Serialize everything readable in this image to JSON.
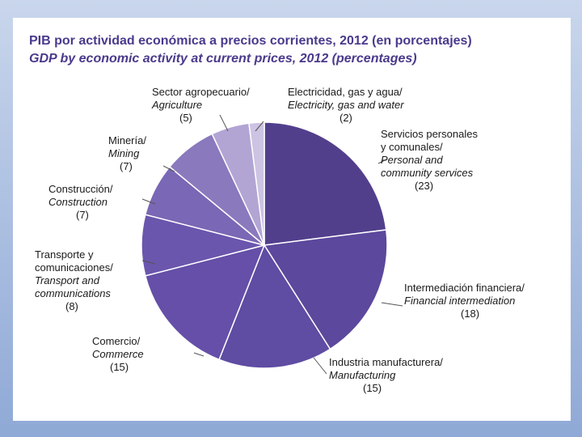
{
  "title": "PIB por actividad económica a precios corrientes, 2012 (en porcentajes)",
  "subtitle": "GDP by economic activity at current prices, 2012 (percentages)",
  "colors": {
    "slices": [
      "#523f8c",
      "#5c489c",
      "#5f4ca3",
      "#654fa8",
      "#6b56ad",
      "#7a67b5",
      "#8a79bd",
      "#b2a5d4",
      "#cdc3e3"
    ],
    "title": "#4a3a8c",
    "leader": "#555555"
  },
  "chart_data": {
    "type": "pie",
    "title": "PIB por actividad económica a precios corrientes, 2012 (en porcentajes)",
    "subtitle": "GDP by economic activity at current prices, 2012 (percentages)",
    "slices": [
      {
        "label_es": "Servicios personales y comunales/",
        "label_en": "Personal and community services",
        "value": 23,
        "value_label": "(23)"
      },
      {
        "label_es": "Intermediación financiera/",
        "label_en": "Financial intermediation",
        "value": 18,
        "value_label": "(18)"
      },
      {
        "label_es": "Industria manufacturera/",
        "label_en": "Manufacturing",
        "value": 15,
        "value_label": "(15)"
      },
      {
        "label_es": "Comercio/",
        "label_en": "Commerce",
        "value": 15,
        "value_label": "(15)"
      },
      {
        "label_es": "Transporte y comunicaciones/",
        "label_en": "Transport and communications",
        "value": 8,
        "value_label": "(8)"
      },
      {
        "label_es": "Construcción/",
        "label_en": "Construction",
        "value": 7,
        "value_label": "(7)"
      },
      {
        "label_es": "Minería/",
        "label_en": "Mining",
        "value": 7,
        "value_label": "(7)"
      },
      {
        "label_es": "Sector agropecuario/",
        "label_en": "Agriculture",
        "value": 5,
        "value_label": "(5)"
      },
      {
        "label_es": "Electricidad, gas y agua/",
        "label_en": "Electricity, gas and water",
        "value": 2,
        "value_label": "(2)"
      }
    ]
  }
}
